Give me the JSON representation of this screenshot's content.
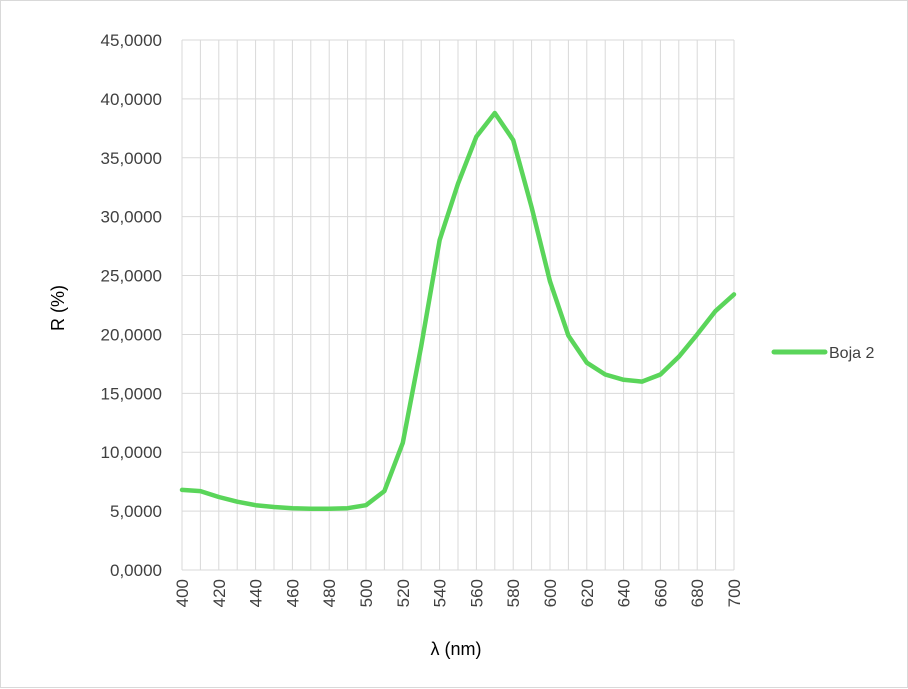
{
  "chart_data": {
    "type": "line",
    "title": "",
    "xlabel": "λ (nm)",
    "ylabel": "R (%)",
    "xlim": [
      400,
      700
    ],
    "ylim": [
      0,
      45
    ],
    "grid": true,
    "legend_position": "right",
    "x_ticks": [
      "400",
      "420",
      "440",
      "460",
      "480",
      "500",
      "520",
      "540",
      "560",
      "580",
      "600",
      "620",
      "640",
      "660",
      "680",
      "700"
    ],
    "y_ticks": [
      "0,0000",
      "5,0000",
      "10,0000",
      "15,0000",
      "20,0000",
      "25,0000",
      "30,0000",
      "35,0000",
      "40,0000",
      "45,0000"
    ],
    "series": [
      {
        "name": "Boja 2",
        "color": "#5ad55a",
        "x": [
          400,
          410,
          420,
          430,
          440,
          450,
          460,
          470,
          480,
          490,
          500,
          510,
          520,
          530,
          540,
          550,
          560,
          570,
          580,
          590,
          600,
          610,
          620,
          630,
          640,
          650,
          660,
          670,
          680,
          690,
          700
        ],
        "values": [
          6.8,
          6.7,
          6.2,
          5.8,
          5.5,
          5.35,
          5.25,
          5.2,
          5.2,
          5.25,
          5.5,
          6.7,
          10.8,
          19.0,
          28.0,
          32.8,
          36.8,
          38.8,
          36.5,
          30.8,
          24.5,
          19.9,
          17.6,
          16.6,
          16.15,
          16.0,
          16.6,
          18.1,
          20.0,
          22.0,
          23.4
        ]
      }
    ]
  }
}
